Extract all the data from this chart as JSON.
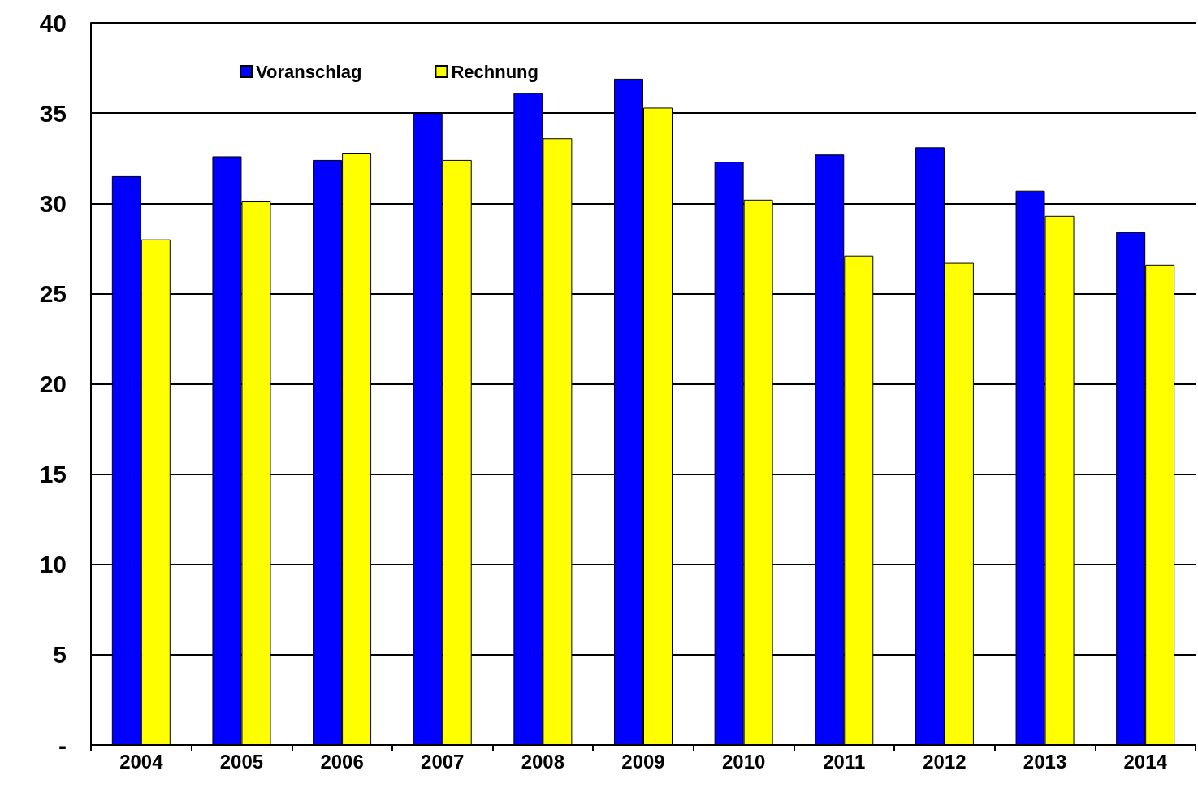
{
  "chart_data": {
    "type": "bar",
    "categories": [
      "2004",
      "2005",
      "2006",
      "2007",
      "2008",
      "2009",
      "2010",
      "2011",
      "2012",
      "2013",
      "2014"
    ],
    "series": [
      {
        "name": "Voranschlag",
        "color": "#0000ff",
        "values": [
          31.5,
          32.6,
          32.4,
          35.0,
          36.1,
          36.9,
          32.3,
          32.7,
          33.1,
          30.7,
          28.4
        ]
      },
      {
        "name": "Rechnung",
        "color": "#ffff00",
        "values": [
          28.0,
          30.1,
          32.8,
          32.4,
          33.6,
          35.3,
          30.2,
          27.1,
          26.7,
          29.3,
          26.6
        ]
      }
    ],
    "ylim": [
      0,
      40
    ],
    "yticks": [
      {
        "value": 0,
        "label": "-"
      },
      5,
      10,
      15,
      20,
      25,
      30,
      35,
      40
    ],
    "grid": "y",
    "legend": "top left"
  }
}
